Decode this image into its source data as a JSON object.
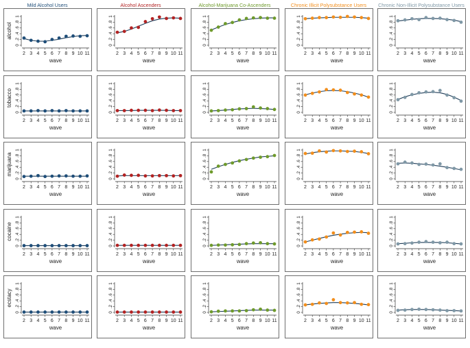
{
  "figure": {
    "x_tick_labels": [
      "2",
      "3",
      "4",
      "5",
      "6",
      "7",
      "8",
      "9",
      "10",
      "11"
    ],
    "y_tick_labels": [
      "0",
      ".2",
      ".4",
      ".6",
      ".8",
      "1"
    ],
    "xlabel": "wave"
  },
  "chart_data": {
    "type": "scatter",
    "description": "Small multiples: observed proportions (dots) and fitted trajectories (lines) by wave, rows = substance, columns = latent class",
    "x": [
      2,
      3,
      4,
      5,
      6,
      7,
      8,
      9,
      10,
      11
    ],
    "xlabel": "wave",
    "ylim": [
      0,
      1
    ],
    "yticks": [
      0,
      0.2,
      0.4,
      0.6,
      0.8,
      1
    ],
    "grid": false,
    "classes": [
      {
        "name": "Mild Alcohol Users",
        "color": "#1f4e79"
      },
      {
        "name": "Alcohol Ascenders",
        "color": "#b22222"
      },
      {
        "name": "Alcohol-Marijuana Co-Ascenders",
        "color": "#6e9a2b"
      },
      {
        "name": "Chronic Illicit Polysubstance Users",
        "color": "#f28e1c"
      },
      {
        "name": "Chronic Non-Illicit Polysubstance Users",
        "color": "#7f98a6"
      }
    ],
    "substances": [
      "alcohol",
      "tobacco",
      "marijuana",
      "cocaine",
      "ecstacy"
    ],
    "panels": [
      [
        {
          "points": [
            0.25,
            0.17,
            0.14,
            0.12,
            0.2,
            0.25,
            0.31,
            0.32,
            0.31,
            0.33
          ],
          "fit": [
            0.23,
            0.17,
            0.14,
            0.14,
            0.17,
            0.21,
            0.26,
            0.3,
            0.33,
            0.34
          ]
        },
        {
          "points": [
            0.45,
            0.48,
            0.6,
            0.62,
            0.82,
            0.92,
            0.98,
            0.93,
            0.95,
            0.93
          ],
          "fit": [
            0.43,
            0.48,
            0.56,
            0.66,
            0.76,
            0.85,
            0.91,
            0.94,
            0.95,
            0.94
          ]
        },
        {
          "points": [
            0.52,
            0.63,
            0.75,
            0.79,
            0.88,
            0.93,
            0.95,
            0.96,
            0.94,
            0.94
          ],
          "fit": [
            0.53,
            0.63,
            0.72,
            0.79,
            0.85,
            0.89,
            0.92,
            0.94,
            0.95,
            0.95
          ]
        },
        {
          "points": [
            0.92,
            0.94,
            0.96,
            0.96,
            0.98,
            0.97,
            1.0,
            0.98,
            0.96,
            0.93
          ],
          "fit": [
            0.92,
            0.94,
            0.95,
            0.96,
            0.97,
            0.97,
            0.97,
            0.97,
            0.96,
            0.94
          ]
        },
        {
          "points": [
            0.85,
            0.88,
            0.92,
            0.89,
            0.96,
            0.93,
            0.94,
            0.89,
            0.86,
            0.8
          ],
          "fit": [
            0.84,
            0.87,
            0.9,
            0.92,
            0.93,
            0.93,
            0.92,
            0.9,
            0.87,
            0.82
          ]
        }
      ],
      [
        {
          "points": [
            0.05,
            0.05,
            0.06,
            0.05,
            0.06,
            0.05,
            0.06,
            0.05,
            0.05,
            0.05
          ],
          "fit": [
            0.05,
            0.05,
            0.05,
            0.05,
            0.05,
            0.05,
            0.05,
            0.05,
            0.05,
            0.05
          ]
        },
        {
          "points": [
            0.06,
            0.06,
            0.07,
            0.07,
            0.07,
            0.06,
            0.08,
            0.07,
            0.06,
            0.06
          ],
          "fit": [
            0.06,
            0.06,
            0.06,
            0.07,
            0.07,
            0.07,
            0.07,
            0.07,
            0.06,
            0.06
          ]
        },
        {
          "points": [
            0.05,
            0.06,
            0.08,
            0.09,
            0.12,
            0.13,
            0.19,
            0.15,
            0.13,
            0.1
          ],
          "fit": [
            0.05,
            0.06,
            0.08,
            0.1,
            0.12,
            0.13,
            0.14,
            0.13,
            0.12,
            0.1
          ]
        },
        {
          "points": [
            0.6,
            0.66,
            0.71,
            0.79,
            0.78,
            0.77,
            0.69,
            0.64,
            0.6,
            0.53
          ],
          "fit": [
            0.61,
            0.67,
            0.72,
            0.75,
            0.76,
            0.75,
            0.72,
            0.67,
            0.61,
            0.53
          ]
        },
        {
          "points": [
            0.44,
            0.52,
            0.62,
            0.68,
            0.71,
            0.72,
            0.76,
            0.6,
            0.51,
            0.39
          ],
          "fit": [
            0.45,
            0.54,
            0.61,
            0.66,
            0.69,
            0.7,
            0.68,
            0.62,
            0.53,
            0.41
          ]
        }
      ],
      [
        {
          "points": [
            0.08,
            0.09,
            0.11,
            0.08,
            0.09,
            0.1,
            0.1,
            0.09,
            0.09,
            0.1
          ],
          "fit": [
            0.09,
            0.09,
            0.09,
            0.09,
            0.09,
            0.09,
            0.09,
            0.09,
            0.09,
            0.09
          ]
        },
        {
          "points": [
            0.09,
            0.13,
            0.12,
            0.12,
            0.1,
            0.1,
            0.11,
            0.11,
            0.1,
            0.11
          ],
          "fit": [
            0.1,
            0.11,
            0.11,
            0.11,
            0.11,
            0.11,
            0.11,
            0.11,
            0.11,
            0.11
          ]
        },
        {
          "points": [
            0.24,
            0.44,
            0.5,
            0.55,
            0.62,
            0.67,
            0.72,
            0.75,
            0.77,
            0.81
          ],
          "fit": [
            0.33,
            0.42,
            0.5,
            0.57,
            0.63,
            0.68,
            0.72,
            0.76,
            0.78,
            0.8
          ]
        },
        {
          "points": [
            0.88,
            0.89,
            0.97,
            0.93,
            0.98,
            0.97,
            0.95,
            0.96,
            0.94,
            0.87
          ],
          "fit": [
            0.86,
            0.91,
            0.94,
            0.96,
            0.97,
            0.97,
            0.96,
            0.95,
            0.92,
            0.88
          ]
        },
        {
          "points": [
            0.52,
            0.58,
            0.55,
            0.5,
            0.51,
            0.48,
            0.52,
            0.39,
            0.36,
            0.33
          ],
          "fit": [
            0.54,
            0.55,
            0.54,
            0.52,
            0.5,
            0.47,
            0.44,
            0.4,
            0.36,
            0.31
          ]
        }
      ],
      [
        {
          "points": [
            0.01,
            0.01,
            0.01,
            0.01,
            0.01,
            0.01,
            0.01,
            0.01,
            0.01,
            0.01
          ],
          "fit": [
            0.01,
            0.01,
            0.01,
            0.01,
            0.01,
            0.01,
            0.01,
            0.01,
            0.01,
            0.01
          ]
        },
        {
          "points": [
            0.02,
            0.02,
            0.02,
            0.02,
            0.02,
            0.02,
            0.02,
            0.02,
            0.02,
            0.02
          ],
          "fit": [
            0.02,
            0.02,
            0.02,
            0.02,
            0.02,
            0.02,
            0.02,
            0.02,
            0.02,
            0.02
          ]
        },
        {
          "points": [
            0.02,
            0.03,
            0.03,
            0.04,
            0.05,
            0.08,
            0.1,
            0.11,
            0.08,
            0.07
          ],
          "fit": [
            0.02,
            0.03,
            0.04,
            0.05,
            0.06,
            0.07,
            0.08,
            0.08,
            0.08,
            0.08
          ]
        },
        {
          "points": [
            0.14,
            0.21,
            0.24,
            0.31,
            0.45,
            0.38,
            0.47,
            0.48,
            0.49,
            0.44
          ],
          "fit": [
            0.14,
            0.2,
            0.26,
            0.32,
            0.37,
            0.41,
            0.44,
            0.46,
            0.47,
            0.46
          ]
        },
        {
          "points": [
            0.07,
            0.08,
            0.1,
            0.13,
            0.15,
            0.13,
            0.11,
            0.13,
            0.08,
            0.07
          ],
          "fit": [
            0.08,
            0.09,
            0.11,
            0.12,
            0.12,
            0.12,
            0.12,
            0.11,
            0.09,
            0.07
          ]
        }
      ],
      [
        {
          "points": [
            0.01,
            0.01,
            0.01,
            0.01,
            0.01,
            0.01,
            0.01,
            0.01,
            0.01,
            0.01
          ],
          "fit": [
            0.01,
            0.01,
            0.01,
            0.01,
            0.01,
            0.01,
            0.01,
            0.01,
            0.01,
            0.01
          ]
        },
        {
          "points": [
            0.01,
            0.01,
            0.01,
            0.01,
            0.01,
            0.01,
            0.01,
            0.01,
            0.01,
            0.01
          ],
          "fit": [
            0.01,
            0.01,
            0.01,
            0.01,
            0.01,
            0.01,
            0.01,
            0.01,
            0.01,
            0.01
          ]
        },
        {
          "points": [
            0.02,
            0.04,
            0.05,
            0.05,
            0.05,
            0.06,
            0.09,
            0.11,
            0.08,
            0.07
          ],
          "fit": [
            0.02,
            0.03,
            0.04,
            0.05,
            0.06,
            0.07,
            0.08,
            0.08,
            0.08,
            0.08
          ]
        },
        {
          "points": [
            0.26,
            0.28,
            0.33,
            0.31,
            0.44,
            0.34,
            0.33,
            0.34,
            0.28,
            0.27
          ],
          "fit": [
            0.26,
            0.29,
            0.31,
            0.33,
            0.34,
            0.34,
            0.33,
            0.31,
            0.29,
            0.26
          ]
        },
        {
          "points": [
            0.07,
            0.08,
            0.1,
            0.11,
            0.1,
            0.09,
            0.08,
            0.06,
            0.06,
            0.05
          ],
          "fit": [
            0.08,
            0.09,
            0.1,
            0.1,
            0.1,
            0.09,
            0.08,
            0.07,
            0.06,
            0.05
          ]
        }
      ]
    ]
  }
}
